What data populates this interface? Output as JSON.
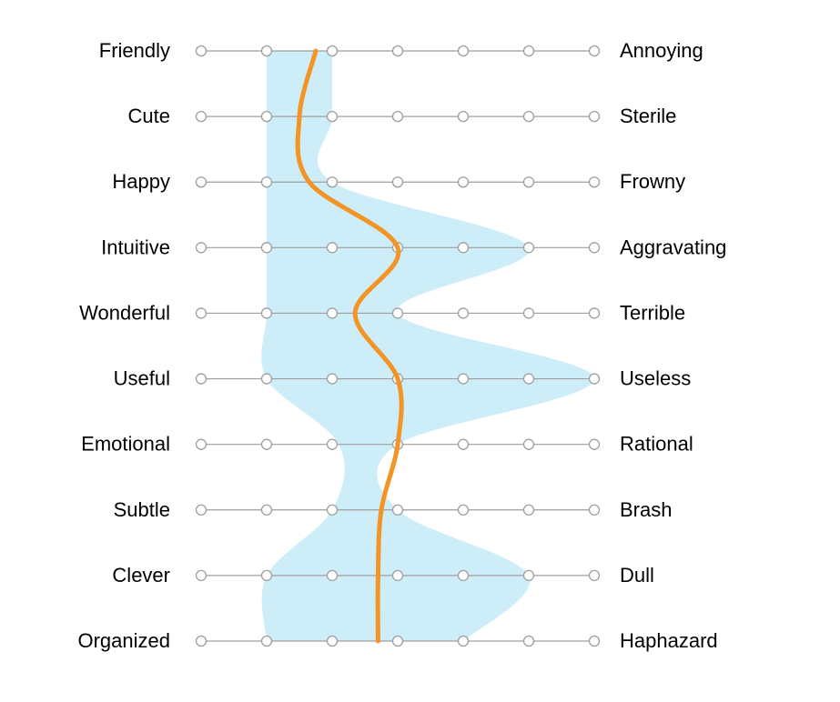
{
  "chart_data": {
    "type": "semantic-differential",
    "scale_points": 7,
    "items": [
      {
        "left": "Friendly",
        "right": "Annoying",
        "min": 2,
        "max": 3,
        "mean": 2.75
      },
      {
        "left": "Cute",
        "right": "Sterile",
        "min": 2,
        "max": 3,
        "mean": 2.5
      },
      {
        "left": "Happy",
        "right": "Frowny",
        "min": 2,
        "max": 3,
        "mean": 2.65
      },
      {
        "left": "Intuitive",
        "right": "Aggravating",
        "min": 2,
        "max": 6,
        "mean": 4.0
      },
      {
        "left": "Wonderful",
        "right": "Terrible",
        "min": 2,
        "max": 4,
        "mean": 3.35
      },
      {
        "left": "Useful",
        "right": "Useless",
        "min": 2,
        "max": 7,
        "mean": 4.0
      },
      {
        "left": "Emotional",
        "right": "Rational",
        "min": 3.1,
        "max": 4,
        "mean": 4.0
      },
      {
        "left": "Subtle",
        "right": "Brash",
        "min": 3,
        "max": 4,
        "mean": 3.75
      },
      {
        "left": "Clever",
        "right": "Dull",
        "min": 2,
        "max": 6,
        "mean": 3.7
      },
      {
        "left": "Organized",
        "right": "Haphazard",
        "min": 2,
        "max": 5,
        "mean": 3.7
      }
    ],
    "colors": {
      "range_fill": "#cdeef9",
      "mean_line": "#f39425",
      "scale_line": "#9e9e9e",
      "dot_stroke": "#9e9e9e"
    }
  }
}
